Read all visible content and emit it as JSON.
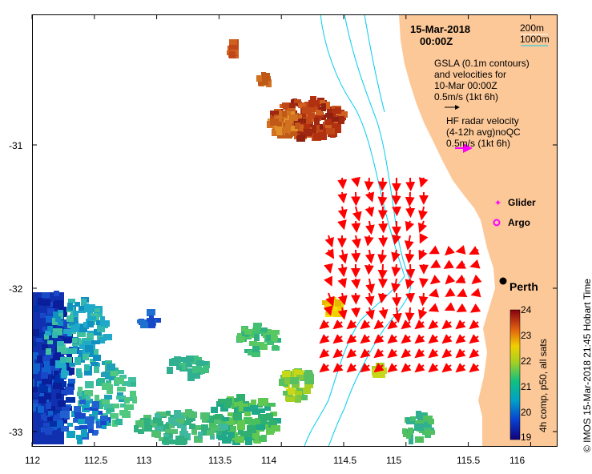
{
  "title": {
    "date": "15-Mar-2018",
    "time": "00:00Z"
  },
  "contours": {
    "c200": "200m",
    "c1000": "1000m"
  },
  "gsla": {
    "line1": "GSLA (0.1m contours)",
    "line2": "and velocities for",
    "line3": "10-Mar 00:00Z",
    "ref": "0.5m/s (1kt 6h)"
  },
  "hf": {
    "line1": "HF radar velocity",
    "line2": "(4-12h avg)noQC",
    "ref": "0.5m/s (1kt 6h)"
  },
  "markers": {
    "glider": "Glider",
    "argo": "Argo",
    "city": "Perth"
  },
  "axes": {
    "x_ticks": [
      "112",
      "112.5",
      "113",
      "113.5",
      "114",
      "114.5",
      "115",
      "115.5",
      "116"
    ],
    "y_ticks": [
      "-31",
      "-32",
      "-33"
    ]
  },
  "colorbar": {
    "label": "4h comp, p50, all sats",
    "ticks": [
      "24",
      "23",
      "22",
      "21",
      "20",
      "19"
    ]
  },
  "side_label": "© IMOS 15-Mar-2018 21:45 Hobart Time",
  "colors": {
    "land": "#FCC898",
    "vector": "#FF0000",
    "hf_ref": "#FF00FF",
    "contour": "#00CCEE"
  }
}
